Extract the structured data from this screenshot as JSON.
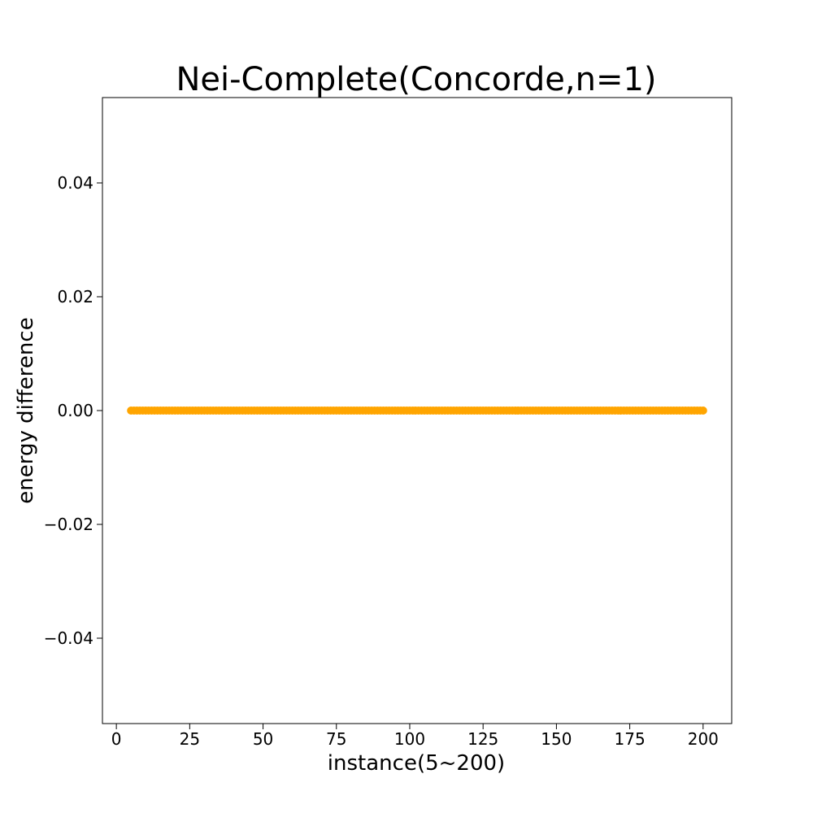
{
  "chart_data": {
    "type": "scatter",
    "title": "Nei-Complete(Concorde,n=1)",
    "xlabel": "instance(5~200)",
    "ylabel": "energy difference",
    "xlim": [
      -4.75,
      209.75
    ],
    "ylim": [
      -0.055,
      0.055
    ],
    "x_ticks": [
      0,
      25,
      50,
      75,
      100,
      125,
      150,
      175,
      200
    ],
    "x_tick_labels": [
      "0",
      "25",
      "50",
      "75",
      "100",
      "125",
      "150",
      "175",
      "200"
    ],
    "y_ticks": [
      -0.04,
      -0.02,
      0.0,
      0.02,
      0.04
    ],
    "y_tick_labels": [
      "−0.04",
      "−0.02",
      "0.00",
      "0.02",
      "0.04"
    ],
    "grid": false,
    "series": [
      {
        "color": "#FFA500",
        "x_start": 5,
        "x_end": 200,
        "x_step": 1,
        "y_constant": 0.0
      }
    ]
  }
}
